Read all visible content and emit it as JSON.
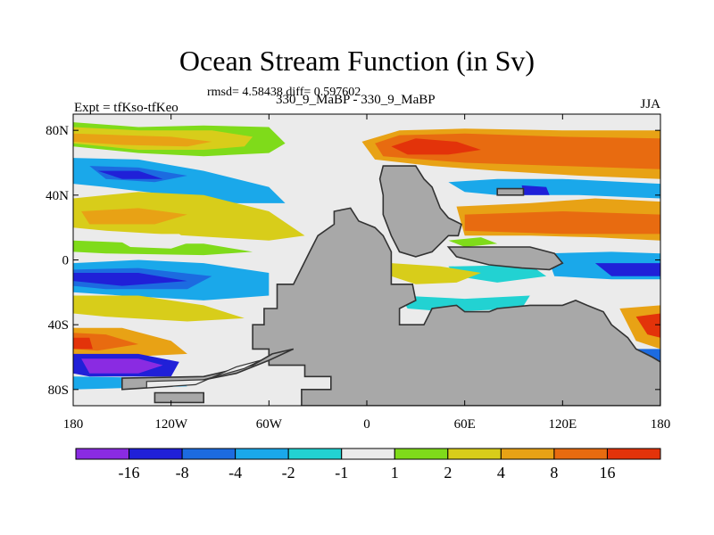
{
  "chart_data": {
    "type": "heatmap",
    "title": "Ocean Stream Function (in Sv)",
    "stats": "rmsd= 4.58438 diff= 0.597602",
    "left_string": "Expt = tfKso-tfKeo",
    "center_string": "330_9_MaBP - 330_9_MaBP",
    "right_string": "JJA",
    "x_tick_labels": [
      "180",
      "120W",
      "60W",
      "0",
      "60E",
      "120E",
      "180"
    ],
    "y_tick_labels": [
      "80N",
      "40N",
      "0",
      "40S",
      "80S"
    ],
    "xlim": [
      -180,
      180
    ],
    "ylim": [
      -90,
      90
    ],
    "land_color": "#a8a8a8",
    "colorbar": {
      "colors": [
        "#8a2be2",
        "#2020d8",
        "#1c6be0",
        "#1aa8ea",
        "#22d2d2",
        "#ebebeb",
        "#7fdb1a",
        "#d8cd1a",
        "#e8a215",
        "#e86b10",
        "#e3330a"
      ],
      "labels": [
        "-16",
        "-8",
        "-4",
        "-2",
        "-1",
        "1",
        "2",
        "4",
        "8",
        "16"
      ]
    }
  }
}
